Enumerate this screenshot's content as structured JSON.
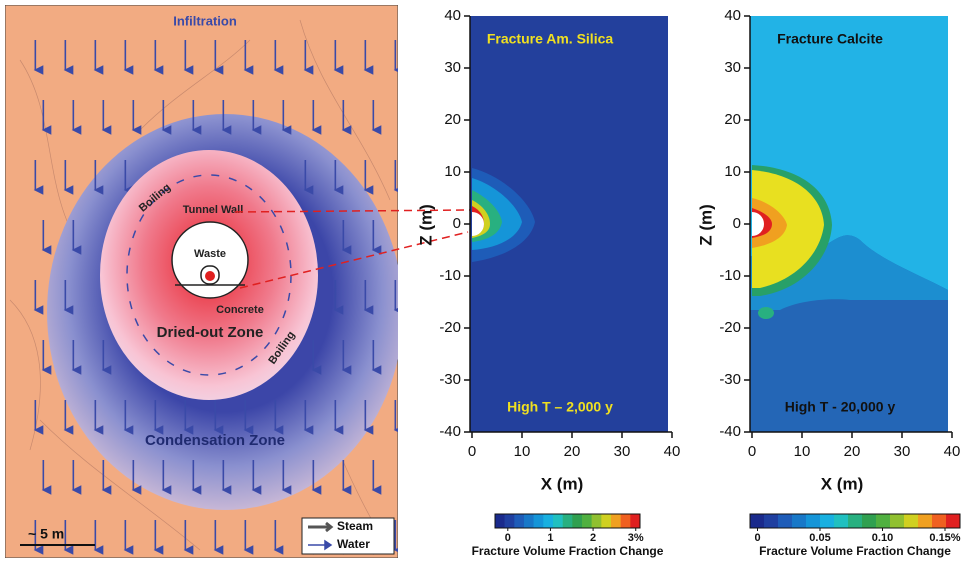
{
  "diagram": {
    "infiltration": "Infiltration",
    "boiling_upper": "Boiling",
    "boiling_lower": "Boiling",
    "tunnel_wall": "Tunnel Wall",
    "waste": "Waste",
    "concrete": "Concrete",
    "dried_out_zone": "Dried-out Zone",
    "condensation_zone": "Condensation Zone",
    "scale": "~ 5 m",
    "legend": [
      "Steam",
      "Water"
    ]
  },
  "chart_data": [
    {
      "type": "contour",
      "title": "Fracture Am. Silica",
      "annotation": "High T – 2,000 y",
      "x_label": "X (m)",
      "y_label": "Z (m)",
      "xlim": [
        0,
        40
      ],
      "ylim": [
        -40,
        40
      ],
      "xticks": [
        0,
        10,
        20,
        30,
        40
      ],
      "yticks": [
        -40,
        -30,
        -20,
        -10,
        0,
        10,
        20,
        30,
        40
      ],
      "colorbar_label": "Fracture Volume Fraction Change",
      "clim": [
        -0.3,
        3.1
      ],
      "colorbar_ticks": [
        0,
        1,
        2,
        {
          "value": 3,
          "label": "3%"
        }
      ],
      "colorbar_colors": [
        "#1a2a8c",
        "#1f3fa0",
        "#1e5cb8",
        "#1878c8",
        "#1595d8",
        "#18b0e0",
        "#20c0c0",
        "#28b080",
        "#30a050",
        "#50b040",
        "#90c030",
        "#d0d020",
        "#f0a020",
        "#f06020",
        "#e02020"
      ]
    },
    {
      "type": "contour",
      "title": "Fracture Calcite",
      "annotation": "High T - 20,000 y",
      "x_label": "X (m)",
      "y_label": "Z (m)",
      "xlim": [
        0,
        40
      ],
      "ylim": [
        -40,
        40
      ],
      "xticks": [
        0,
        10,
        20,
        30,
        40
      ],
      "yticks": [
        -40,
        -30,
        -20,
        -10,
        0,
        10,
        20,
        30,
        40
      ],
      "colorbar_label": "Fracture Volume Fraction Change",
      "clim": [
        -0.006,
        0.162
      ],
      "colorbar_ticks": [
        0,
        0.05,
        {
          "value": 0.1,
          "label": "0.10"
        },
        {
          "value": 0.15,
          "label": "0.15%"
        }
      ],
      "colorbar_colors": [
        "#1a2a8c",
        "#1f3fa0",
        "#1e5cb8",
        "#1878c8",
        "#1595d8",
        "#18b0e0",
        "#20c0c0",
        "#28b080",
        "#30a050",
        "#50b040",
        "#90c030",
        "#d0d020",
        "#f0a020",
        "#f06020",
        "#e02020"
      ]
    }
  ]
}
